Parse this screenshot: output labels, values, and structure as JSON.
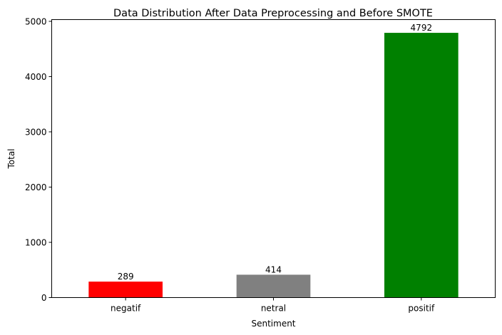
{
  "chart_data": {
    "type": "bar",
    "title": "Data Distribution After Data Preprocessing and Before SMOTE",
    "xlabel": "Sentiment",
    "ylabel": "Total",
    "categories": [
      "negatif",
      "netral",
      "positif"
    ],
    "values": [
      289,
      414,
      4792
    ],
    "colors": [
      "#ff0000",
      "#808080",
      "#008000"
    ],
    "ylim": [
      0,
      5031.6
    ],
    "yticks": [
      0,
      1000,
      2000,
      3000,
      4000,
      5000
    ],
    "grid": false,
    "legend": "none"
  }
}
